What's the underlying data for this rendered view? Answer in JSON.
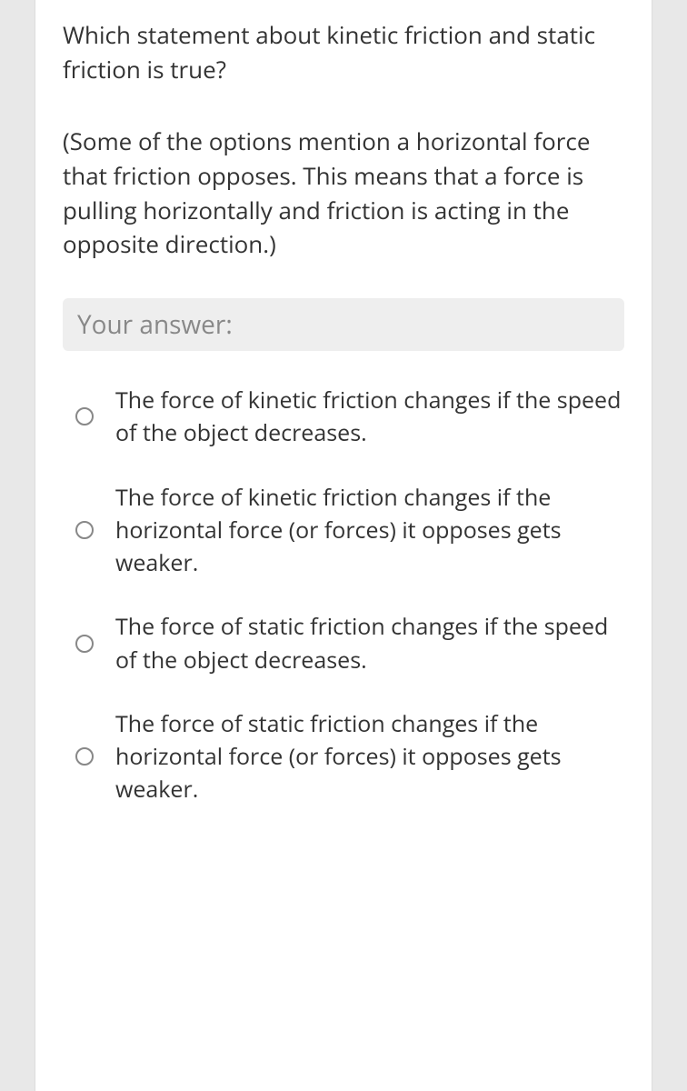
{
  "question": {
    "main": "Which statement about kinetic friction and static friction is true?",
    "note": "(Some of the options mention a horizontal force that friction opposes. This means that a force is pulling horizontally and friction is acting in the opposite direction.)"
  },
  "answer_header": "Your answer:",
  "options": [
    {
      "text": "The force of kinetic friction changes if the speed of the object decreases."
    },
    {
      "text": "The force of kinetic friction changes if the horizontal force (or forces) it opposes gets weaker."
    },
    {
      "text": "The force of static friction changes if the speed of the object decreases."
    },
    {
      "text": "The force of static friction changes if the horizontal force (or forces) it opposes gets weaker."
    }
  ],
  "colors": {
    "page_background": "#e8e8e8",
    "card_background": "#ffffff",
    "text_color": "#333333",
    "header_background": "#eeeeee",
    "header_text": "#888888",
    "radio_border": "#888888"
  },
  "typography": {
    "question_fontsize": 26,
    "header_fontsize": 28,
    "option_fontsize": 25
  }
}
